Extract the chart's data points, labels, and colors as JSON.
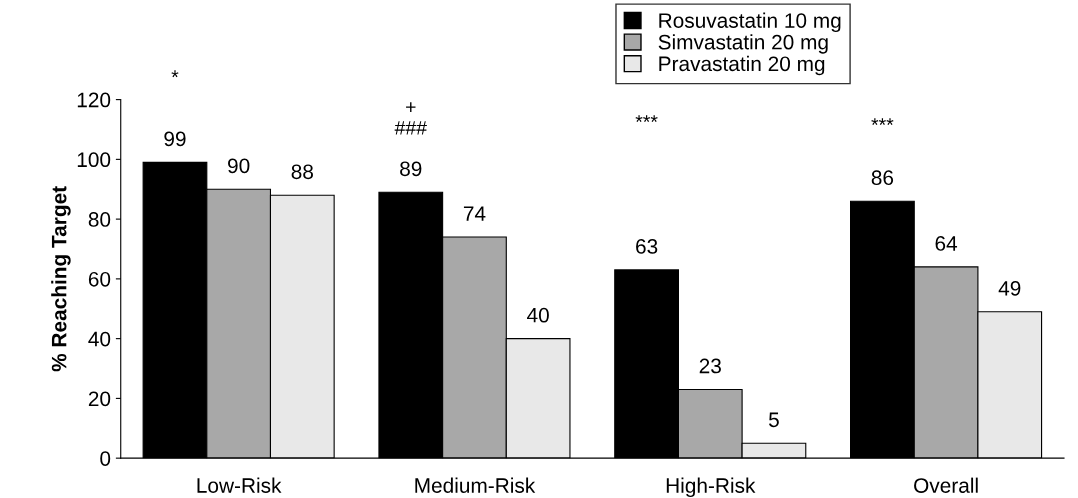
{
  "chart_data": {
    "type": "bar",
    "ylabel": "% Reaching Target",
    "categories": [
      "Low-Risk",
      "Medium-Risk",
      "High-Risk",
      "Overall"
    ],
    "series": [
      {
        "name": "Rosuvastatin 10 mg",
        "color": "#000000",
        "values": [
          99,
          89,
          63,
          86
        ]
      },
      {
        "name": "Simvastatin 20 mg",
        "color": "#a8a8a8",
        "values": [
          90,
          74,
          23,
          64
        ]
      },
      {
        "name": "Pravastatin 20 mg",
        "color": "#e8e8e8",
        "values": [
          88,
          40,
          5,
          49
        ]
      }
    ],
    "ylim": [
      0,
      120
    ],
    "yticks": [
      0,
      20,
      40,
      60,
      80,
      100,
      120
    ],
    "data_labels": true,
    "grid": false,
    "legend": "top right",
    "annotations": [
      "*",
      "+",
      "###",
      "***",
      "***"
    ]
  }
}
